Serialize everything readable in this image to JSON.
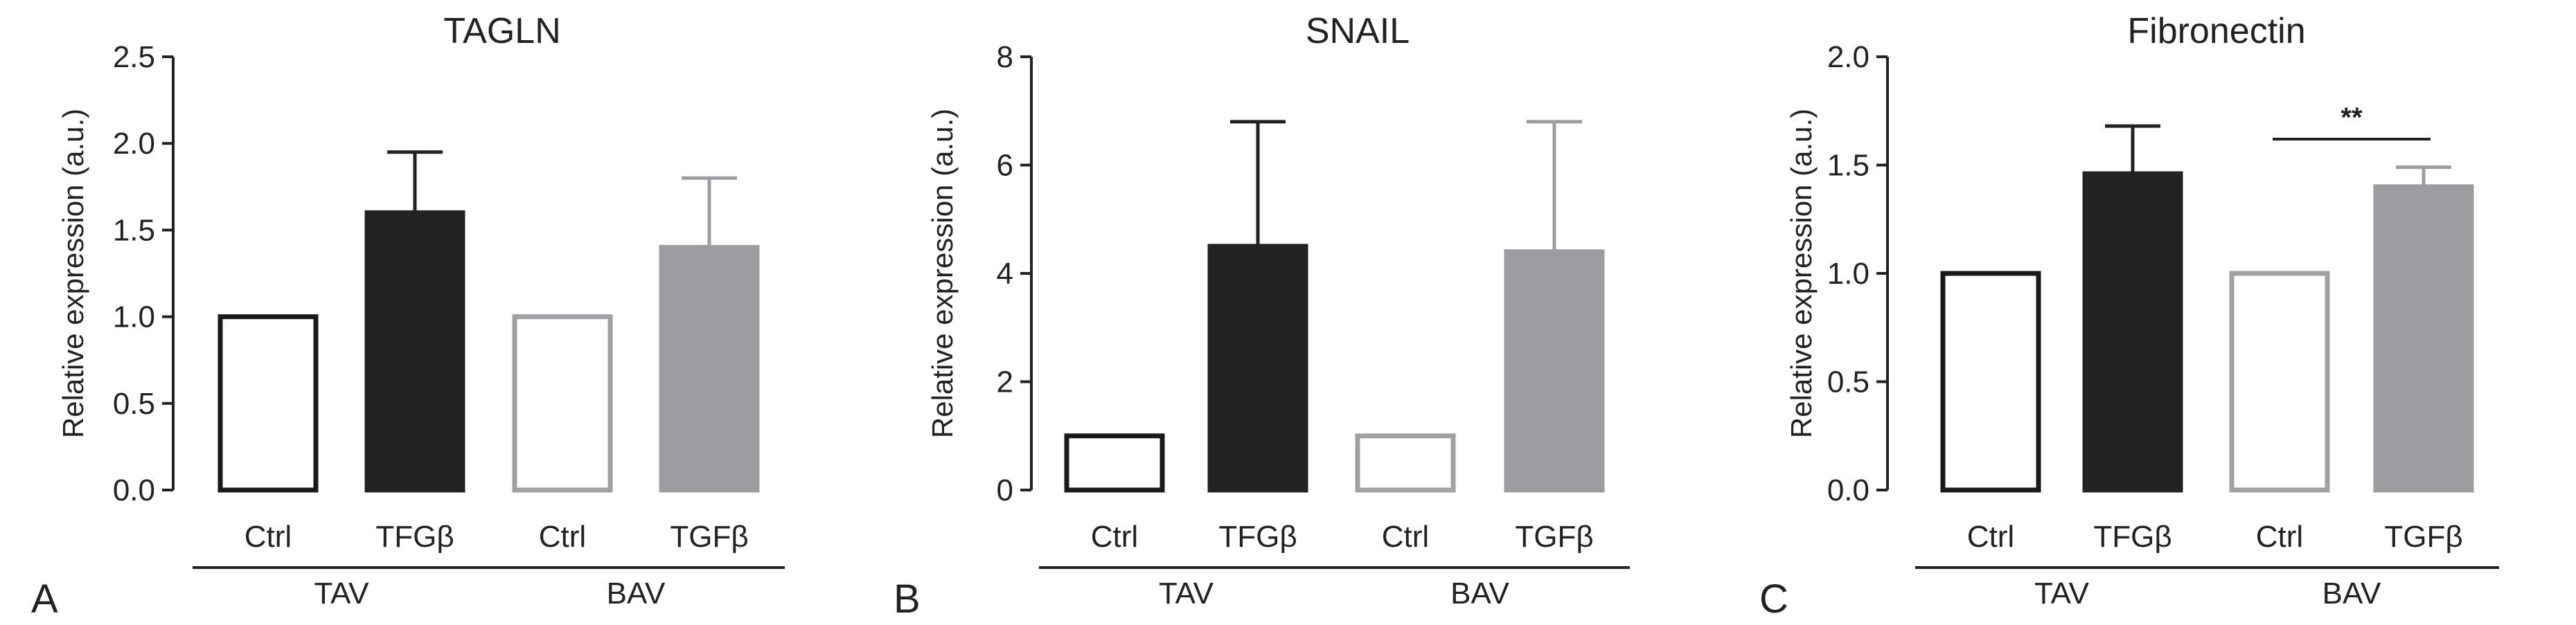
{
  "colors": {
    "ctrl_tav_fill": "#ffffff",
    "ctrl_tav_stroke": "#1a1a1a",
    "tgf_tav_fill": "#222222",
    "ctrl_bav_fill": "#ffffff",
    "ctrl_bav_stroke": "#a0a0a5",
    "tgf_bav_fill": "#9d9ca1",
    "axis": "#222222"
  },
  "chart_data": [
    {
      "type": "bar",
      "panel": "A",
      "title": "TAGLN",
      "ylabel": "Relative expression (a.u.)",
      "xlabel": "",
      "ylim": [
        0,
        2.5
      ],
      "yticks": [
        "0.0",
        "0.5",
        "1.0",
        "1.5",
        "2.0",
        "2.5"
      ],
      "categories": [
        "Ctrl",
        "TFGβ",
        "Ctrl",
        "TGFβ"
      ],
      "groups": [
        {
          "label": "TAV",
          "categories": [
            0,
            1
          ]
        },
        {
          "label": "BAV",
          "categories": [
            2,
            3
          ]
        }
      ],
      "values": [
        1.0,
        1.6,
        1.0,
        1.4
      ],
      "errors": [
        0,
        0.35,
        0,
        0.4
      ],
      "significance": []
    },
    {
      "type": "bar",
      "panel": "B",
      "title": "SNAIL",
      "ylabel": "Relative expression (a.u.)",
      "xlabel": "",
      "ylim": [
        0,
        8
      ],
      "yticks": [
        "0",
        "2",
        "4",
        "6",
        "8"
      ],
      "categories": [
        "Ctrl",
        "TFGβ",
        "Ctrl",
        "TGFβ"
      ],
      "groups": [
        {
          "label": "TAV",
          "categories": [
            0,
            1
          ]
        },
        {
          "label": "BAV",
          "categories": [
            2,
            3
          ]
        }
      ],
      "values": [
        1.0,
        4.5,
        1.0,
        4.4
      ],
      "errors": [
        0,
        2.3,
        0,
        2.4
      ],
      "significance": []
    },
    {
      "type": "bar",
      "panel": "C",
      "title": "Fibronectin",
      "ylabel": "Relative expression (a.u.)",
      "xlabel": "",
      "ylim": [
        0,
        2.0
      ],
      "yticks": [
        "0.0",
        "0.5",
        "1.0",
        "1.5",
        "2.0"
      ],
      "categories": [
        "Ctrl",
        "TFGβ",
        "Ctrl",
        "TGFβ"
      ],
      "groups": [
        {
          "label": "TAV",
          "categories": [
            0,
            1
          ]
        },
        {
          "label": "BAV",
          "categories": [
            2,
            3
          ]
        }
      ],
      "values": [
        1.0,
        1.46,
        1.0,
        1.4
      ],
      "errors": [
        0,
        0.22,
        0,
        0.09
      ],
      "significance": [
        {
          "from": 2,
          "to": 3,
          "label": "**",
          "y": 1.62
        }
      ]
    }
  ]
}
